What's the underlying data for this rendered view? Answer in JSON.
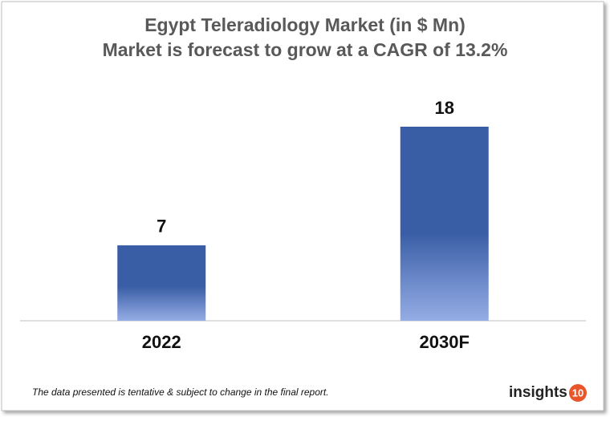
{
  "chart_data": {
    "type": "bar",
    "title": "Egypt Teleradiology Market (in $ Mn)",
    "subtitle": "Market is forecast to grow at a CAGR of 13.2%",
    "categories": [
      "2022",
      "2030F"
    ],
    "values": [
      7,
      18
    ],
    "color": "#3a5ea6",
    "footnote": "The data presented is tentative & subject to change in the final report.",
    "logo": {
      "text": "insights",
      "badge": "10"
    }
  }
}
